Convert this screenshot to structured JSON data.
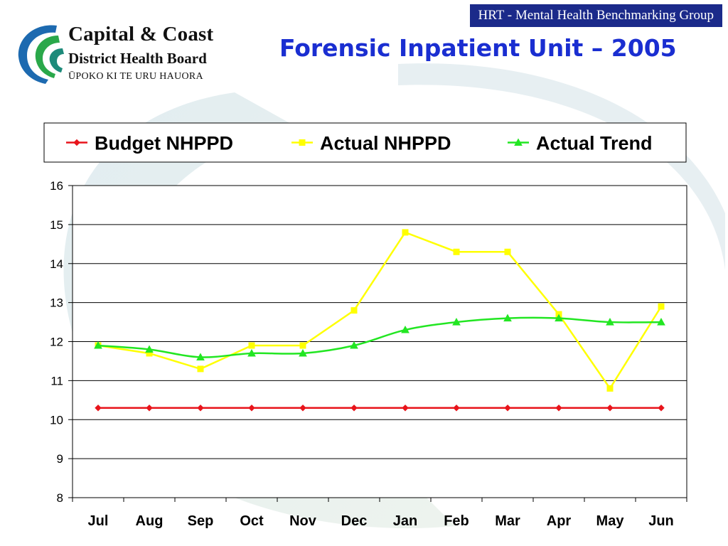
{
  "header": {
    "tag": "HRT - Mental Health Benchmarking Group",
    "title": "Forensic Inpatient Unit – 2005"
  },
  "logo": {
    "line1": "Capital & Coast",
    "line2": "District Health Board",
    "line3": "ŪPOKO KI TE URU HAUORA"
  },
  "chart_data": {
    "type": "line",
    "title": "",
    "xlabel": "",
    "ylabel": "",
    "ylim": [
      8,
      16
    ],
    "yticks": [
      8,
      9,
      10,
      11,
      12,
      13,
      14,
      15,
      16
    ],
    "grid": true,
    "legend_position": "top",
    "categories": [
      "Jul",
      "Aug",
      "Sep",
      "Oct",
      "Nov",
      "Dec",
      "Jan",
      "Feb",
      "Mar",
      "Apr",
      "May",
      "Jun"
    ],
    "series": [
      {
        "name": "Budget NHPPD",
        "color": "#e8141b",
        "marker": "diamond",
        "values": [
          10.3,
          10.3,
          10.3,
          10.3,
          10.3,
          10.3,
          10.3,
          10.3,
          10.3,
          10.3,
          10.3,
          10.3
        ]
      },
      {
        "name": "Actual NHPPD",
        "color": "#ffff00",
        "marker": "square",
        "values": [
          11.9,
          11.7,
          11.3,
          11.9,
          11.9,
          12.8,
          14.8,
          14.3,
          14.3,
          12.7,
          10.8,
          12.9
        ]
      },
      {
        "name": "Actual Trend",
        "color": "#22e622",
        "marker": "triangle",
        "values": [
          11.9,
          11.8,
          11.6,
          11.7,
          11.7,
          11.9,
          12.3,
          12.5,
          12.6,
          12.6,
          12.5,
          12.5
        ]
      }
    ]
  }
}
